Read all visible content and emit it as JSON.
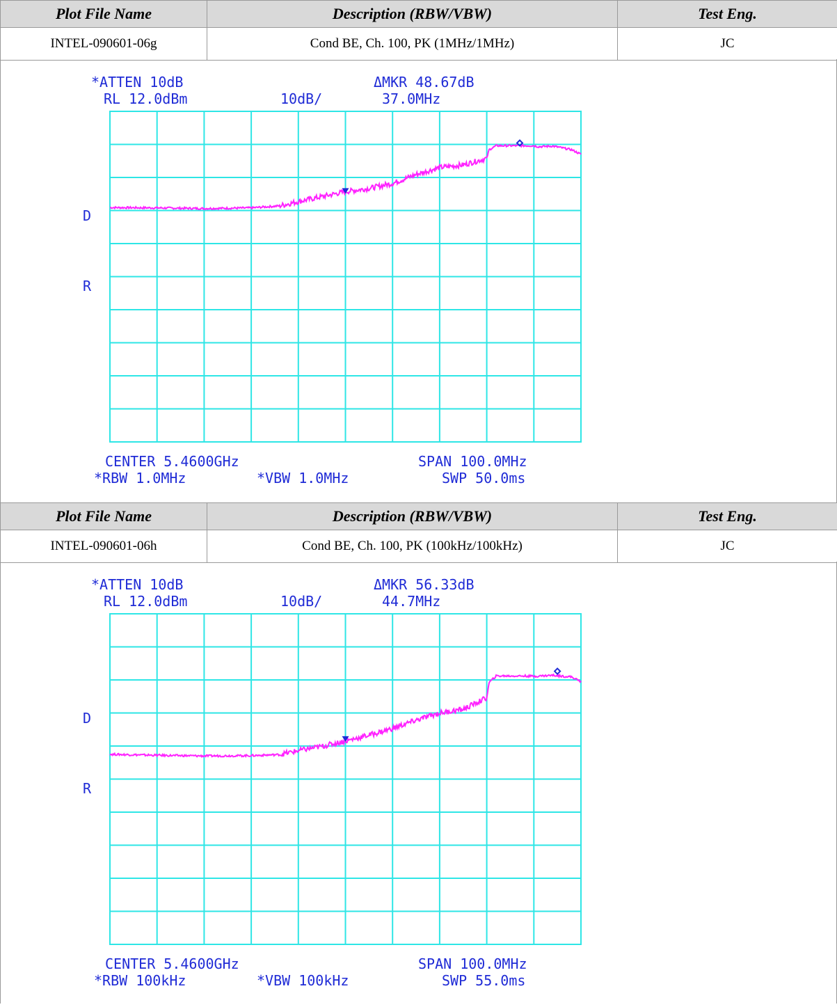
{
  "sections": [
    {
      "header": {
        "plot_file_name": "Plot File Name",
        "description": "Description (RBW/VBW)",
        "test_eng": "Test Eng."
      },
      "row": {
        "plot_file_name": "INTEL-090601-06g",
        "description": "Cond BE, Ch. 100, PK (1MHz/1MHz)",
        "test_eng": "JC"
      },
      "analyzer": {
        "atten": "*ATTEN 10dB",
        "rl": "RL 12.0dBm",
        "scale": "10dB/",
        "mkr": "ΔMKR 48.67dB",
        "mkr_freq": "37.0MHz",
        "side_d": "D",
        "side_r": "R",
        "center": "CENTER 5.4600GHz",
        "span": "SPAN 100.0MHz",
        "rbw": "*RBW 1.0MHz",
        "vbw": "*VBW 1.0MHz",
        "swp": "SWP 50.0ms"
      }
    },
    {
      "header": {
        "plot_file_name": "Plot File Name",
        "description": "Description (RBW/VBW)",
        "test_eng": "Test Eng."
      },
      "row": {
        "plot_file_name": "INTEL-090601-06h",
        "description": "Cond BE, Ch. 100, PK (100kHz/100kHz)",
        "test_eng": "JC"
      },
      "analyzer": {
        "atten": "*ATTEN 10dB",
        "rl": "RL 12.0dBm",
        "scale": "10dB/",
        "mkr": "ΔMKR 56.33dB",
        "mkr_freq": "44.7MHz",
        "side_d": "D",
        "side_r": "R",
        "center": "CENTER 5.4600GHz",
        "span": "SPAN 100.0MHz",
        "rbw": "*RBW 100kHz",
        "vbw": "*VBW 100kHz",
        "swp": "SWP 55.0ms"
      }
    }
  ],
  "colors": {
    "grid": "#2ee6e6",
    "trace": "#ff22ff",
    "text": "#1f2bd6",
    "marker": "#1f2bd6"
  },
  "chart_data": [
    {
      "type": "line",
      "x_unit": "MHz",
      "y_unit": "dBm",
      "xlim": [
        5410,
        5510
      ],
      "ylim": [
        -88,
        12
      ],
      "grid": true,
      "series": [
        {
          "x": [
            5410,
            5420,
            5430,
            5440,
            5446,
            5450,
            5455,
            5460,
            5465,
            5470,
            5475,
            5480,
            5485,
            5490,
            5490.5,
            5492,
            5500,
            5501,
            5504,
            5508,
            5510
          ],
          "y": [
            -17.1,
            -17.2,
            -17.4,
            -17.2,
            -16.6,
            -15.3,
            -13.8,
            -12.3,
            -11.3,
            -9.8,
            -7.1,
            -5.0,
            -4.2,
            -2.2,
            0.4,
            1.6,
            1.6,
            1.3,
            1.5,
            0.4,
            -1.0
          ]
        }
      ],
      "markers": [
        {
          "x": 5460,
          "y": -12.5,
          "shape": "triangle"
        },
        {
          "x": 5497,
          "y": 2.0,
          "shape": "diamond"
        }
      ]
    },
    {
      "type": "line",
      "x_unit": "MHz",
      "y_unit": "dBm",
      "xlim": [
        5410,
        5510
      ],
      "ylim": [
        -88,
        12
      ],
      "grid": true,
      "series": [
        {
          "x": [
            5410,
            5420,
            5430,
            5440,
            5446,
            5450,
            5455,
            5460,
            5465,
            5470,
            5475,
            5480,
            5485,
            5490,
            5490.5,
            5492,
            5498,
            5500,
            5504,
            5508,
            5510
          ],
          "y": [
            -30.5,
            -30.8,
            -31.0,
            -30.9,
            -30.6,
            -29.4,
            -28.1,
            -26.5,
            -24.7,
            -22.7,
            -20.2,
            -18.0,
            -16.9,
            -13.4,
            -8.8,
            -6.8,
            -6.8,
            -6.9,
            -6.6,
            -7.1,
            -8.5
          ]
        }
      ],
      "markers": [
        {
          "x": 5460,
          "y": -26.3,
          "shape": "triangle"
        },
        {
          "x": 5505,
          "y": -5.8,
          "shape": "diamond"
        }
      ]
    }
  ]
}
